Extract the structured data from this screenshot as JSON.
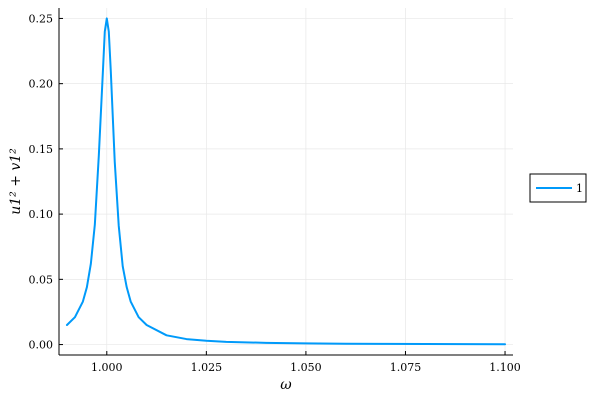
{
  "chart_data": {
    "type": "line",
    "title": "",
    "xlabel": "ω",
    "ylabel": "u1² + v1²",
    "xlim": [
      0.99,
      1.1
    ],
    "ylim": [
      0.0,
      0.25
    ],
    "x_ticks": [
      1.0,
      1.025,
      1.05,
      1.075,
      1.1
    ],
    "x_tick_labels": [
      "1.000",
      "1.025",
      "1.050",
      "1.075",
      "1.100"
    ],
    "y_ticks": [
      0.0,
      0.05,
      0.1,
      0.15,
      0.2,
      0.25
    ],
    "y_tick_labels": [
      "0.00",
      "0.05",
      "0.10",
      "0.15",
      "0.20",
      "0.25"
    ],
    "grid": true,
    "legend_position": "outside-right",
    "series": [
      {
        "name": "1",
        "color": "#009AFA",
        "x": [
          0.99,
          0.992,
          0.994,
          0.995,
          0.996,
          0.997,
          0.998,
          0.999,
          0.9995,
          1.0,
          1.0005,
          1.001,
          1.002,
          1.003,
          1.004,
          1.005,
          1.006,
          1.008,
          1.01,
          1.015,
          1.02,
          1.025,
          1.03,
          1.04,
          1.05,
          1.06,
          1.07,
          1.08,
          1.09,
          1.1
        ],
        "y": [
          0.015,
          0.021,
          0.033,
          0.044,
          0.062,
          0.092,
          0.145,
          0.208,
          0.24,
          0.25,
          0.24,
          0.21,
          0.14,
          0.091,
          0.06,
          0.044,
          0.033,
          0.021,
          0.015,
          0.0071,
          0.0042,
          0.0029,
          0.0021,
          0.0013,
          0.0009,
          0.00066,
          0.0005,
          0.0004,
          0.00033,
          0.00028
        ]
      }
    ]
  }
}
